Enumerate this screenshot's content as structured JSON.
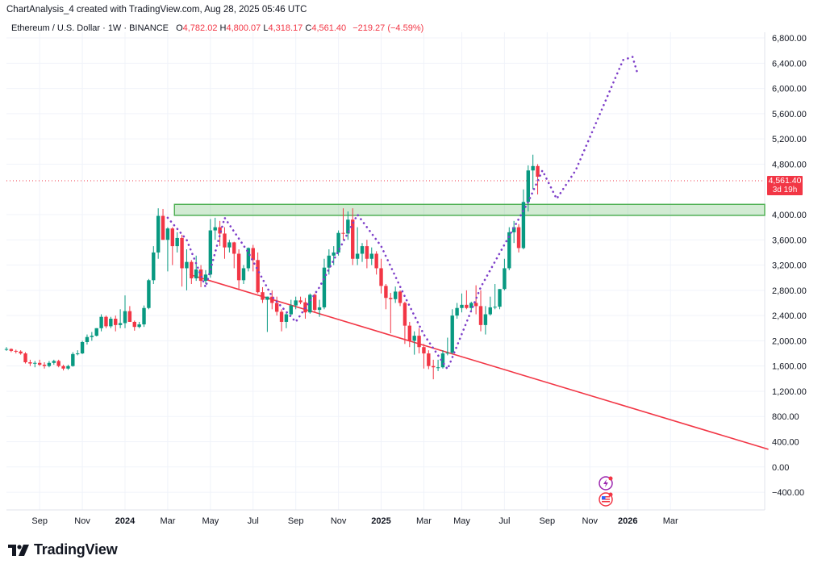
{
  "header": {
    "credit": "ChartAnalysis_4 created with TradingView.com, Aug 28, 2025 05:46 UTC",
    "symbol": "Ethereum / U.S. Dollar · 1W · BINANCE",
    "open_label": "O",
    "open_value": "4,782.02",
    "high_label": "H",
    "high_value": "4,800.07",
    "low_label": "L",
    "low_value": "4,318.17",
    "close_label": "C",
    "close_value": "4,561.40",
    "change": "−219.27 (−4.59%)"
  },
  "price_badge": {
    "price": "4,561.40",
    "countdown": "3d 19h"
  },
  "brand": {
    "name": "TradingView"
  },
  "colors": {
    "up": "#089981",
    "down": "#f23645",
    "zone": "#4caf50",
    "projection": "#7e3fc9",
    "trendline": "#f23645"
  },
  "chart_data": {
    "type": "candlestick",
    "interval": "1W",
    "ylim": [
      -700,
      7100
    ],
    "y_ticks": [
      "6,800.00",
      "6,400.00",
      "6,000.00",
      "5,600.00",
      "5,200.00",
      "4,800.00",
      "4,000.00",
      "3,600.00",
      "3,200.00",
      "2,800.00",
      "2,400.00",
      "2,000.00",
      "1,600.00",
      "1,200.00",
      "800.00",
      "400.00",
      "0.00",
      "−400.00"
    ],
    "y_tick_values": [
      6800,
      6400,
      6000,
      5600,
      5200,
      4800,
      4000,
      3600,
      3200,
      2800,
      2400,
      2000,
      1600,
      1200,
      800,
      400,
      0,
      -400
    ],
    "x_ticks": [
      {
        "label": "Sep",
        "week": 7,
        "bold": false
      },
      {
        "label": "Nov",
        "week": 16,
        "bold": false
      },
      {
        "label": "2024",
        "week": 25,
        "bold": true
      },
      {
        "label": "Mar",
        "week": 34,
        "bold": false
      },
      {
        "label": "May",
        "week": 43,
        "bold": false
      },
      {
        "label": "Jul",
        "week": 52,
        "bold": false
      },
      {
        "label": "Sep",
        "week": 61,
        "bold": false
      },
      {
        "label": "Nov",
        "week": 70,
        "bold": false
      },
      {
        "label": "2025",
        "week": 79,
        "bold": true
      },
      {
        "label": "Mar",
        "week": 88,
        "bold": false
      },
      {
        "label": "May",
        "week": 96,
        "bold": false
      },
      {
        "label": "Jul",
        "week": 105,
        "bold": false
      },
      {
        "label": "Sep",
        "week": 114,
        "bold": false
      },
      {
        "label": "Nov",
        "week": 123,
        "bold": false
      },
      {
        "label": "2026",
        "week": 131,
        "bold": true
      },
      {
        "label": "Mar",
        "week": 140,
        "bold": false
      }
    ],
    "current_price": 4561.4,
    "resistance_zone": {
      "low": 4000,
      "high": 4150,
      "from_week": 31,
      "to_week": 145
    },
    "support_trendline": [
      {
        "week": 33,
        "price": 3050
      },
      {
        "week": 145,
        "price": 280
      }
    ],
    "projection_path": [
      {
        "week": 34,
        "price": 3950
      },
      {
        "week": 38,
        "price": 3600
      },
      {
        "week": 42,
        "price": 2850
      },
      {
        "week": 46,
        "price": 3950
      },
      {
        "week": 51,
        "price": 3400
      },
      {
        "week": 56,
        "price": 2700
      },
      {
        "week": 61,
        "price": 2300
      },
      {
        "week": 66,
        "price": 2850
      },
      {
        "week": 74,
        "price": 4000
      },
      {
        "week": 79,
        "price": 3500
      },
      {
        "week": 84,
        "price": 2700
      },
      {
        "week": 88,
        "price": 2100
      },
      {
        "week": 93,
        "price": 1550
      },
      {
        "week": 100,
        "price": 2850
      },
      {
        "week": 110,
        "price": 4200
      },
      {
        "week": 113,
        "price": 4700
      },
      {
        "week": 116,
        "price": 4250
      },
      {
        "week": 120,
        "price": 4700
      },
      {
        "week": 130,
        "price": 6450
      },
      {
        "week": 132,
        "price": 6500
      },
      {
        "week": 133,
        "price": 6250
      }
    ],
    "candles": [
      {
        "o": 1860,
        "h": 1900,
        "l": 1840,
        "c": 1870
      },
      {
        "o": 1870,
        "h": 1880,
        "l": 1820,
        "c": 1840
      },
      {
        "o": 1840,
        "h": 1860,
        "l": 1800,
        "c": 1830
      },
      {
        "o": 1830,
        "h": 1850,
        "l": 1780,
        "c": 1800
      },
      {
        "o": 1800,
        "h": 1820,
        "l": 1640,
        "c": 1660
      },
      {
        "o": 1660,
        "h": 1700,
        "l": 1600,
        "c": 1640
      },
      {
        "o": 1640,
        "h": 1680,
        "l": 1580,
        "c": 1650
      },
      {
        "o": 1650,
        "h": 1700,
        "l": 1600,
        "c": 1620
      },
      {
        "o": 1620,
        "h": 1660,
        "l": 1560,
        "c": 1600
      },
      {
        "o": 1600,
        "h": 1680,
        "l": 1580,
        "c": 1650
      },
      {
        "o": 1650,
        "h": 1700,
        "l": 1620,
        "c": 1680
      },
      {
        "o": 1680,
        "h": 1700,
        "l": 1580,
        "c": 1600
      },
      {
        "o": 1600,
        "h": 1620,
        "l": 1530,
        "c": 1560
      },
      {
        "o": 1560,
        "h": 1620,
        "l": 1540,
        "c": 1600
      },
      {
        "o": 1600,
        "h": 1820,
        "l": 1590,
        "c": 1790
      },
      {
        "o": 1790,
        "h": 1850,
        "l": 1770,
        "c": 1800
      },
      {
        "o": 1800,
        "h": 2000,
        "l": 1790,
        "c": 1980
      },
      {
        "o": 1980,
        "h": 2100,
        "l": 1940,
        "c": 2060
      },
      {
        "o": 2060,
        "h": 2140,
        "l": 2000,
        "c": 2080
      },
      {
        "o": 2080,
        "h": 2200,
        "l": 2070,
        "c": 2200
      },
      {
        "o": 2200,
        "h": 2420,
        "l": 2150,
        "c": 2380
      },
      {
        "o": 2380,
        "h": 2400,
        "l": 2200,
        "c": 2230
      },
      {
        "o": 2230,
        "h": 2380,
        "l": 2200,
        "c": 2350
      },
      {
        "o": 2350,
        "h": 2400,
        "l": 2150,
        "c": 2250
      },
      {
        "o": 2250,
        "h": 2500,
        "l": 2200,
        "c": 2280
      },
      {
        "o": 2280,
        "h": 2720,
        "l": 2200,
        "c": 2470
      },
      {
        "o": 2470,
        "h": 2550,
        "l": 2300,
        "c": 2300
      },
      {
        "o": 2300,
        "h": 2320,
        "l": 2160,
        "c": 2220
      },
      {
        "o": 2220,
        "h": 2300,
        "l": 2200,
        "c": 2260
      },
      {
        "o": 2260,
        "h": 2560,
        "l": 2220,
        "c": 2520
      },
      {
        "o": 2520,
        "h": 2980,
        "l": 2500,
        "c": 2960
      },
      {
        "o": 2960,
        "h": 3500,
        "l": 2900,
        "c": 3400
      },
      {
        "o": 3400,
        "h": 4100,
        "l": 3300,
        "c": 3980
      },
      {
        "o": 3980,
        "h": 4090,
        "l": 3600,
        "c": 3600
      },
      {
        "o": 3600,
        "h": 3800,
        "l": 3100,
        "c": 3780
      },
      {
        "o": 3780,
        "h": 3800,
        "l": 3200,
        "c": 3500
      },
      {
        "o": 3500,
        "h": 3720,
        "l": 3400,
        "c": 3630
      },
      {
        "o": 3630,
        "h": 3680,
        "l": 2860,
        "c": 3150
      },
      {
        "o": 3150,
        "h": 3450,
        "l": 2800,
        "c": 3250
      },
      {
        "o": 3250,
        "h": 3280,
        "l": 2900,
        "c": 2990
      },
      {
        "o": 2990,
        "h": 3350,
        "l": 2950,
        "c": 3130
      },
      {
        "o": 3130,
        "h": 3200,
        "l": 2850,
        "c": 2950
      },
      {
        "o": 2950,
        "h": 3120,
        "l": 2900,
        "c": 3050
      },
      {
        "o": 3050,
        "h": 3930,
        "l": 3000,
        "c": 3750
      },
      {
        "o": 3750,
        "h": 3950,
        "l": 3600,
        "c": 3800
      },
      {
        "o": 3800,
        "h": 3900,
        "l": 3500,
        "c": 3700
      },
      {
        "o": 3700,
        "h": 3800,
        "l": 3300,
        "c": 3480
      },
      {
        "o": 3480,
        "h": 3600,
        "l": 3400,
        "c": 3560
      },
      {
        "o": 3560,
        "h": 3570,
        "l": 3150,
        "c": 3380
      },
      {
        "o": 3380,
        "h": 3450,
        "l": 2810,
        "c": 2960
      },
      {
        "o": 2960,
        "h": 3200,
        "l": 2900,
        "c": 3150
      },
      {
        "o": 3150,
        "h": 3480,
        "l": 3100,
        "c": 3470
      },
      {
        "o": 3470,
        "h": 3520,
        "l": 3100,
        "c": 3280
      },
      {
        "o": 3280,
        "h": 3400,
        "l": 2750,
        "c": 2770
      },
      {
        "o": 2770,
        "h": 2850,
        "l": 2600,
        "c": 2650
      },
      {
        "o": 2650,
        "h": 2700,
        "l": 2140,
        "c": 2700
      },
      {
        "o": 2700,
        "h": 2800,
        "l": 2500,
        "c": 2600
      },
      {
        "o": 2600,
        "h": 2700,
        "l": 2400,
        "c": 2460
      },
      {
        "o": 2460,
        "h": 2500,
        "l": 2150,
        "c": 2300
      },
      {
        "o": 2300,
        "h": 2450,
        "l": 2200,
        "c": 2420
      },
      {
        "o": 2420,
        "h": 2650,
        "l": 2400,
        "c": 2560
      },
      {
        "o": 2560,
        "h": 2700,
        "l": 2500,
        "c": 2640
      },
      {
        "o": 2640,
        "h": 2700,
        "l": 2580,
        "c": 2610
      },
      {
        "o": 2610,
        "h": 2680,
        "l": 2350,
        "c": 2450
      },
      {
        "o": 2450,
        "h": 2750,
        "l": 2430,
        "c": 2730
      },
      {
        "o": 2730,
        "h": 2750,
        "l": 2450,
        "c": 2490
      },
      {
        "o": 2490,
        "h": 2650,
        "l": 2380,
        "c": 2530
      },
      {
        "o": 2530,
        "h": 3300,
        "l": 2500,
        "c": 3160
      },
      {
        "o": 3160,
        "h": 3450,
        "l": 3050,
        "c": 3350
      },
      {
        "o": 3350,
        "h": 3500,
        "l": 3200,
        "c": 3400
      },
      {
        "o": 3400,
        "h": 3750,
        "l": 3350,
        "c": 3710
      },
      {
        "o": 3710,
        "h": 4100,
        "l": 3600,
        "c": 3700
      },
      {
        "o": 3700,
        "h": 4050,
        "l": 3600,
        "c": 3920
      },
      {
        "o": 3920,
        "h": 4100,
        "l": 3200,
        "c": 3300
      },
      {
        "o": 3300,
        "h": 3800,
        "l": 3200,
        "c": 3380
      },
      {
        "o": 3380,
        "h": 3550,
        "l": 3250,
        "c": 3500
      },
      {
        "o": 3500,
        "h": 3600,
        "l": 3150,
        "c": 3300
      },
      {
        "o": 3300,
        "h": 3480,
        "l": 3200,
        "c": 3380
      },
      {
        "o": 3380,
        "h": 3420,
        "l": 3050,
        "c": 3150
      },
      {
        "o": 3150,
        "h": 3300,
        "l": 2750,
        "c": 2870
      },
      {
        "o": 2870,
        "h": 2900,
        "l": 2500,
        "c": 2680
      },
      {
        "o": 2680,
        "h": 2760,
        "l": 2120,
        "c": 2660
      },
      {
        "o": 2660,
        "h": 2860,
        "l": 2600,
        "c": 2780
      },
      {
        "o": 2780,
        "h": 2800,
        "l": 2550,
        "c": 2600
      },
      {
        "o": 2600,
        "h": 2620,
        "l": 1950,
        "c": 2240
      },
      {
        "o": 2240,
        "h": 2300,
        "l": 1900,
        "c": 2000
      },
      {
        "o": 2000,
        "h": 2150,
        "l": 1780,
        "c": 2080
      },
      {
        "o": 2080,
        "h": 2200,
        "l": 1800,
        "c": 1900
      },
      {
        "o": 1900,
        "h": 1950,
        "l": 1560,
        "c": 1800
      },
      {
        "o": 1800,
        "h": 1850,
        "l": 1550,
        "c": 1600
      },
      {
        "o": 1600,
        "h": 1700,
        "l": 1390,
        "c": 1580
      },
      {
        "o": 1580,
        "h": 1700,
        "l": 1520,
        "c": 1580
      },
      {
        "o": 1580,
        "h": 1850,
        "l": 1560,
        "c": 1800
      },
      {
        "o": 1800,
        "h": 2050,
        "l": 1770,
        "c": 1810
      },
      {
        "o": 1810,
        "h": 2500,
        "l": 1790,
        "c": 2400
      },
      {
        "o": 2400,
        "h": 2600,
        "l": 2350,
        "c": 2520
      },
      {
        "o": 2520,
        "h": 2750,
        "l": 2450,
        "c": 2570
      },
      {
        "o": 2570,
        "h": 2800,
        "l": 2500,
        "c": 2520
      },
      {
        "o": 2520,
        "h": 2620,
        "l": 2480,
        "c": 2600
      },
      {
        "o": 2600,
        "h": 2880,
        "l": 2420,
        "c": 2550
      },
      {
        "o": 2550,
        "h": 2800,
        "l": 2150,
        "c": 2250
      },
      {
        "o": 2250,
        "h": 2550,
        "l": 2100,
        "c": 2420
      },
      {
        "o": 2420,
        "h": 2700,
        "l": 2400,
        "c": 2530
      },
      {
        "o": 2530,
        "h": 2900,
        "l": 2500,
        "c": 2540
      },
      {
        "o": 2540,
        "h": 2820,
        "l": 2500,
        "c": 2820
      },
      {
        "o": 2820,
        "h": 3300,
        "l": 2800,
        "c": 3150
      },
      {
        "o": 3150,
        "h": 3800,
        "l": 3120,
        "c": 3720
      },
      {
        "o": 3720,
        "h": 3900,
        "l": 3550,
        "c": 3800
      },
      {
        "o": 3800,
        "h": 3850,
        "l": 3400,
        "c": 3470
      },
      {
        "o": 3470,
        "h": 4400,
        "l": 3450,
        "c": 4200
      },
      {
        "o": 4200,
        "h": 4780,
        "l": 4050,
        "c": 4700
      },
      {
        "o": 4700,
        "h": 4950,
        "l": 4400,
        "c": 4770
      },
      {
        "o": 4770,
        "h": 4800,
        "l": 4320,
        "c": 4600
      }
    ]
  }
}
